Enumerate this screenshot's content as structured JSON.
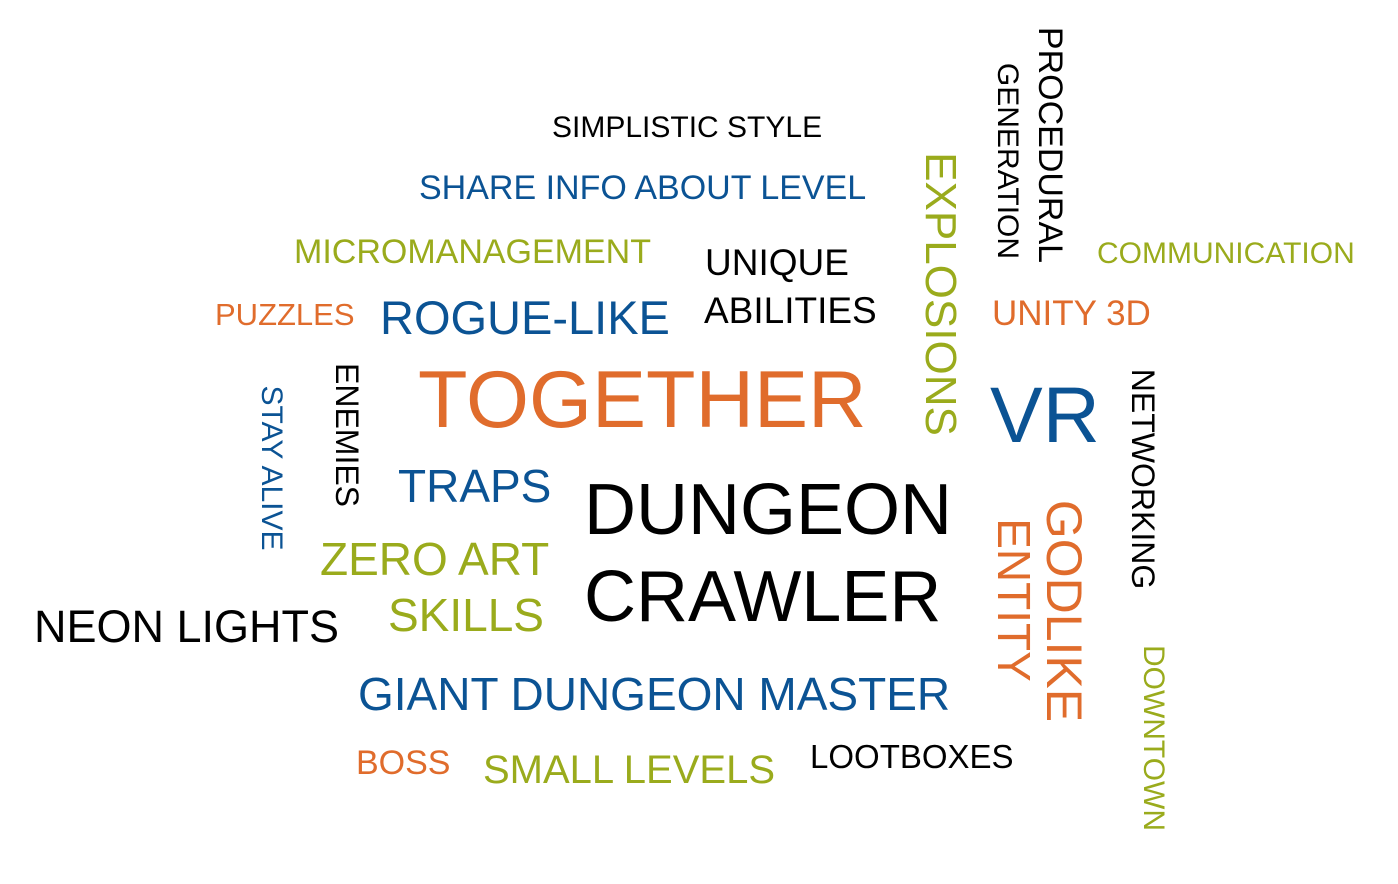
{
  "colors": {
    "black": "#000000",
    "blue": "#0b5394",
    "orange": "#e06c2c",
    "green": "#9aab1c"
  },
  "words": [
    {
      "id": "simplistic-style",
      "text": "SIMPLISTIC STYLE",
      "color": "black",
      "vertical": false
    },
    {
      "id": "share-info-about-level",
      "text": "SHARE INFO ABOUT LEVEL",
      "color": "blue",
      "vertical": false
    },
    {
      "id": "micromanagement",
      "text": "MICROMANAGEMENT",
      "color": "green",
      "vertical": false
    },
    {
      "id": "unique",
      "text": "UNIQUE",
      "color": "black",
      "vertical": false
    },
    {
      "id": "abilities",
      "text": "ABILITIES",
      "color": "black",
      "vertical": false
    },
    {
      "id": "puzzles",
      "text": "PUZZLES",
      "color": "orange",
      "vertical": false
    },
    {
      "id": "rogue-like",
      "text": "ROGUE-LIKE",
      "color": "blue",
      "vertical": false
    },
    {
      "id": "together",
      "text": "TOGETHER",
      "color": "orange",
      "vertical": false
    },
    {
      "id": "traps",
      "text": "TRAPS",
      "color": "blue",
      "vertical": false
    },
    {
      "id": "dungeon",
      "text": "DUNGEON",
      "color": "black",
      "vertical": false
    },
    {
      "id": "crawler",
      "text": "CRAWLER",
      "color": "black",
      "vertical": false
    },
    {
      "id": "zero-art",
      "text": "ZERO ART",
      "color": "green",
      "vertical": false
    },
    {
      "id": "skills",
      "text": "SKILLS",
      "color": "green",
      "vertical": false
    },
    {
      "id": "neon-lights",
      "text": "NEON LIGHTS",
      "color": "black",
      "vertical": false
    },
    {
      "id": "giant-dungeon-master",
      "text": "GIANT DUNGEON MASTER",
      "color": "blue",
      "vertical": false
    },
    {
      "id": "boss",
      "text": "BOSS",
      "color": "orange",
      "vertical": false
    },
    {
      "id": "small-levels",
      "text": "SMALL LEVELS",
      "color": "green",
      "vertical": false
    },
    {
      "id": "lootboxes",
      "text": "LOOTBOXES",
      "color": "black",
      "vertical": false
    },
    {
      "id": "communication",
      "text": "COMMUNICATION",
      "color": "green",
      "vertical": false
    },
    {
      "id": "unity-3d",
      "text": "UNITY 3D",
      "color": "orange",
      "vertical": false
    },
    {
      "id": "vr",
      "text": "VR",
      "color": "blue",
      "vertical": false
    },
    {
      "id": "stay-alive",
      "text": "STAY ALIVE",
      "color": "blue",
      "vertical": true
    },
    {
      "id": "enemies",
      "text": "ENEMIES",
      "color": "black",
      "vertical": true
    },
    {
      "id": "explosions",
      "text": "EXPLOSIONS",
      "color": "green",
      "vertical": true
    },
    {
      "id": "procedural",
      "text": "PROCEDURAL",
      "color": "black",
      "vertical": true
    },
    {
      "id": "generation",
      "text": "GENERATION",
      "color": "black",
      "vertical": true
    },
    {
      "id": "networking",
      "text": "NETWORKING",
      "color": "black",
      "vertical": true
    },
    {
      "id": "entity",
      "text": "ENTITY",
      "color": "orange",
      "vertical": true
    },
    {
      "id": "godlike",
      "text": "GODLIKE",
      "color": "orange",
      "vertical": true
    },
    {
      "id": "downtown",
      "text": "DOWNTOWN",
      "color": "green",
      "vertical": true
    }
  ]
}
